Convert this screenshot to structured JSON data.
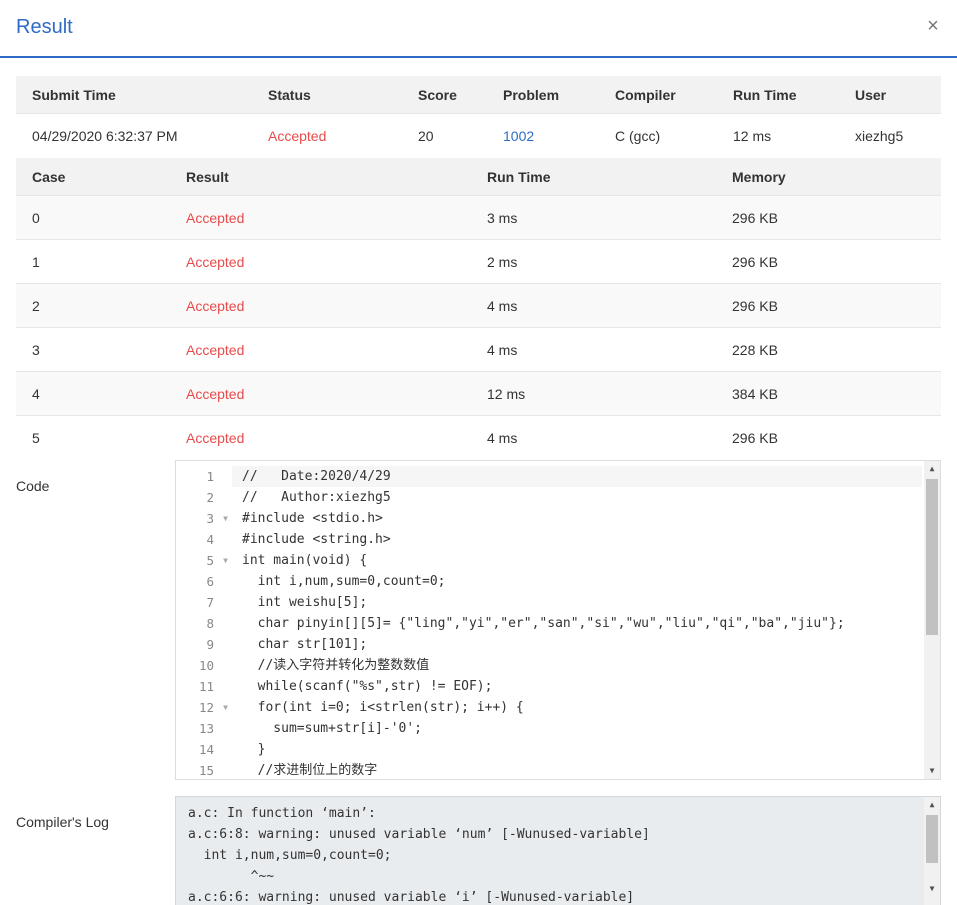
{
  "dialog": {
    "title": "Result",
    "close_label": "×"
  },
  "summary": {
    "headers": [
      "Submit Time",
      "Status",
      "Score",
      "Problem",
      "Compiler",
      "Run Time",
      "User"
    ],
    "row": {
      "submit_time": "04/29/2020 6:32:37 PM",
      "status": "Accepted",
      "score": "20",
      "problem": "1002",
      "compiler": "C (gcc)",
      "run_time": "12 ms",
      "user": "xiezhg5"
    }
  },
  "cases": {
    "headers": [
      "Case",
      "Result",
      "Run Time",
      "Memory"
    ],
    "rows": [
      {
        "case": "0",
        "result": "Accepted",
        "run_time": "3 ms",
        "memory": "296 KB"
      },
      {
        "case": "1",
        "result": "Accepted",
        "run_time": "2 ms",
        "memory": "296 KB"
      },
      {
        "case": "2",
        "result": "Accepted",
        "run_time": "4 ms",
        "memory": "296 KB"
      },
      {
        "case": "3",
        "result": "Accepted",
        "run_time": "4 ms",
        "memory": "228 KB"
      },
      {
        "case": "4",
        "result": "Accepted",
        "run_time": "12 ms",
        "memory": "384 KB"
      },
      {
        "case": "5",
        "result": "Accepted",
        "run_time": "4 ms",
        "memory": "296 KB"
      }
    ]
  },
  "code": {
    "label": "Code",
    "line_numbers": [
      "1",
      "2",
      "3",
      "4",
      "5",
      "6",
      "7",
      "8",
      "9",
      "10",
      "11",
      "12",
      "13",
      "14",
      "15"
    ],
    "lines": [
      "//   Date:2020/4/29",
      "//   Author:xiezhg5",
      "#include <stdio.h>",
      "#include <string.h>",
      "int main(void) {",
      "  int i,num,sum=0,count=0;",
      "  int weishu[5];",
      "  char pinyin[][5]= {\"ling\",\"yi\",\"er\",\"san\",\"si\",\"wu\",\"liu\",\"qi\",\"ba\",\"jiu\"};",
      "  char str[101];",
      "  //读入字符并转化为整数数值",
      "  while(scanf(\"%s\",str) != EOF);",
      "  for(int i=0; i<strlen(str); i++) {",
      "    sum=sum+str[i]-'0';",
      "  }",
      "  //求进制位上的数字"
    ]
  },
  "compiler_log": {
    "label": "Compiler's Log",
    "lines": [
      "a.c: In function ‘main’:",
      "a.c:6:8: warning: unused variable ‘num’ [-Wunused-variable]",
      "  int i,num,sum=0,count=0;",
      "        ^~~",
      "a.c:6:6: warning: unused variable ‘i’ [-Wunused-variable]"
    ]
  }
}
